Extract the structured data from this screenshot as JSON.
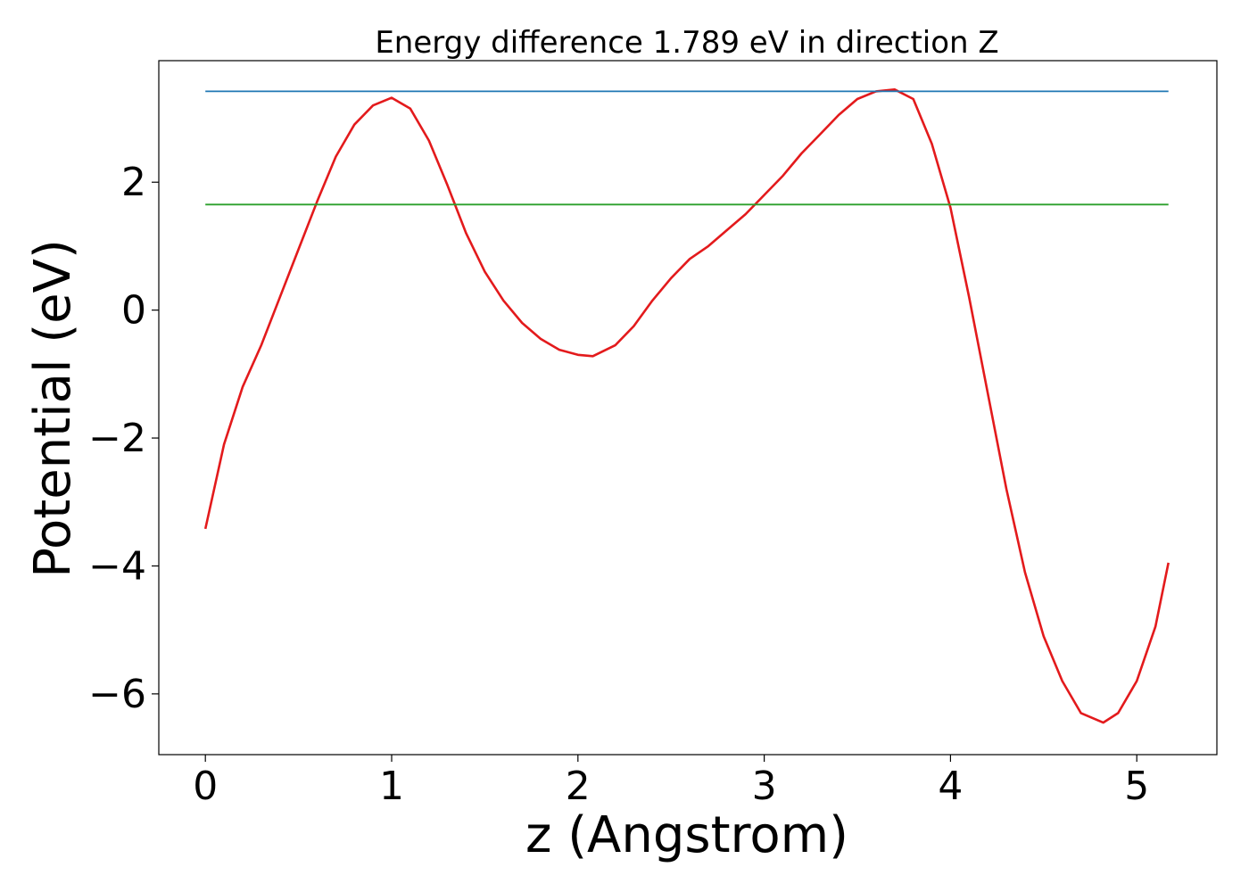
{
  "chart_data": {
    "type": "line",
    "title": "Energy difference 1.789 eV in direction Z",
    "xlabel": "z (Angstrom)",
    "ylabel": "Potential (eV)",
    "xlim": [
      -0.25,
      5.43
    ],
    "ylim": [
      -6.95,
      3.9
    ],
    "x_ticks": [
      0,
      1,
      2,
      3,
      4,
      5
    ],
    "x_tick_labels": [
      "0",
      "1",
      "2",
      "3",
      "4",
      "5"
    ],
    "y_ticks": [
      -6,
      -4,
      -2,
      0,
      2
    ],
    "y_tick_labels": [
      "−6",
      "−4",
      "−2",
      "0",
      "2"
    ],
    "grid": false,
    "colors": {
      "potential": "#e31a1c",
      "max_level": "#1f77b4",
      "mid_level": "#2ca02c",
      "axes": "#000000"
    },
    "series": [
      {
        "color": "#e31a1c",
        "x": [
          0,
          0.1,
          0.2,
          0.3,
          0.4,
          0.5,
          0.6,
          0.7,
          0.8,
          0.9,
          1.0,
          1.1,
          1.2,
          1.3,
          1.4,
          1.5,
          1.6,
          1.7,
          1.8,
          1.9,
          2.0,
          2.08,
          2.2,
          2.3,
          2.4,
          2.5,
          2.6,
          2.7,
          2.8,
          2.9,
          3.0,
          3.1,
          3.2,
          3.3,
          3.4,
          3.5,
          3.6,
          3.7,
          3.8,
          3.9,
          4.0,
          4.1,
          4.2,
          4.3,
          4.4,
          4.5,
          4.6,
          4.7,
          4.82,
          4.9,
          5.0,
          5.1,
          5.17
        ],
        "values": [
          -3.42,
          -2.1,
          -1.2,
          -0.55,
          0.2,
          0.95,
          1.7,
          2.4,
          2.9,
          3.2,
          3.32,
          3.15,
          2.65,
          1.95,
          1.2,
          0.6,
          0.15,
          -0.2,
          -0.45,
          -0.62,
          -0.7,
          -0.72,
          -0.55,
          -0.25,
          0.15,
          0.5,
          0.8,
          1.0,
          1.25,
          1.5,
          1.8,
          2.1,
          2.45,
          2.75,
          3.05,
          3.3,
          3.42,
          3.45,
          3.3,
          2.6,
          1.6,
          0.2,
          -1.3,
          -2.8,
          -4.1,
          -5.1,
          -5.8,
          -6.3,
          -6.45,
          -6.3,
          -5.8,
          -4.95,
          -3.95
        ]
      },
      {
        "color": "#1f77b4",
        "x": [
          0,
          5.17
        ],
        "values": [
          3.42,
          3.42
        ]
      },
      {
        "color": "#2ca02c",
        "x": [
          0,
          5.17
        ],
        "values": [
          1.65,
          1.65
        ]
      }
    ]
  }
}
